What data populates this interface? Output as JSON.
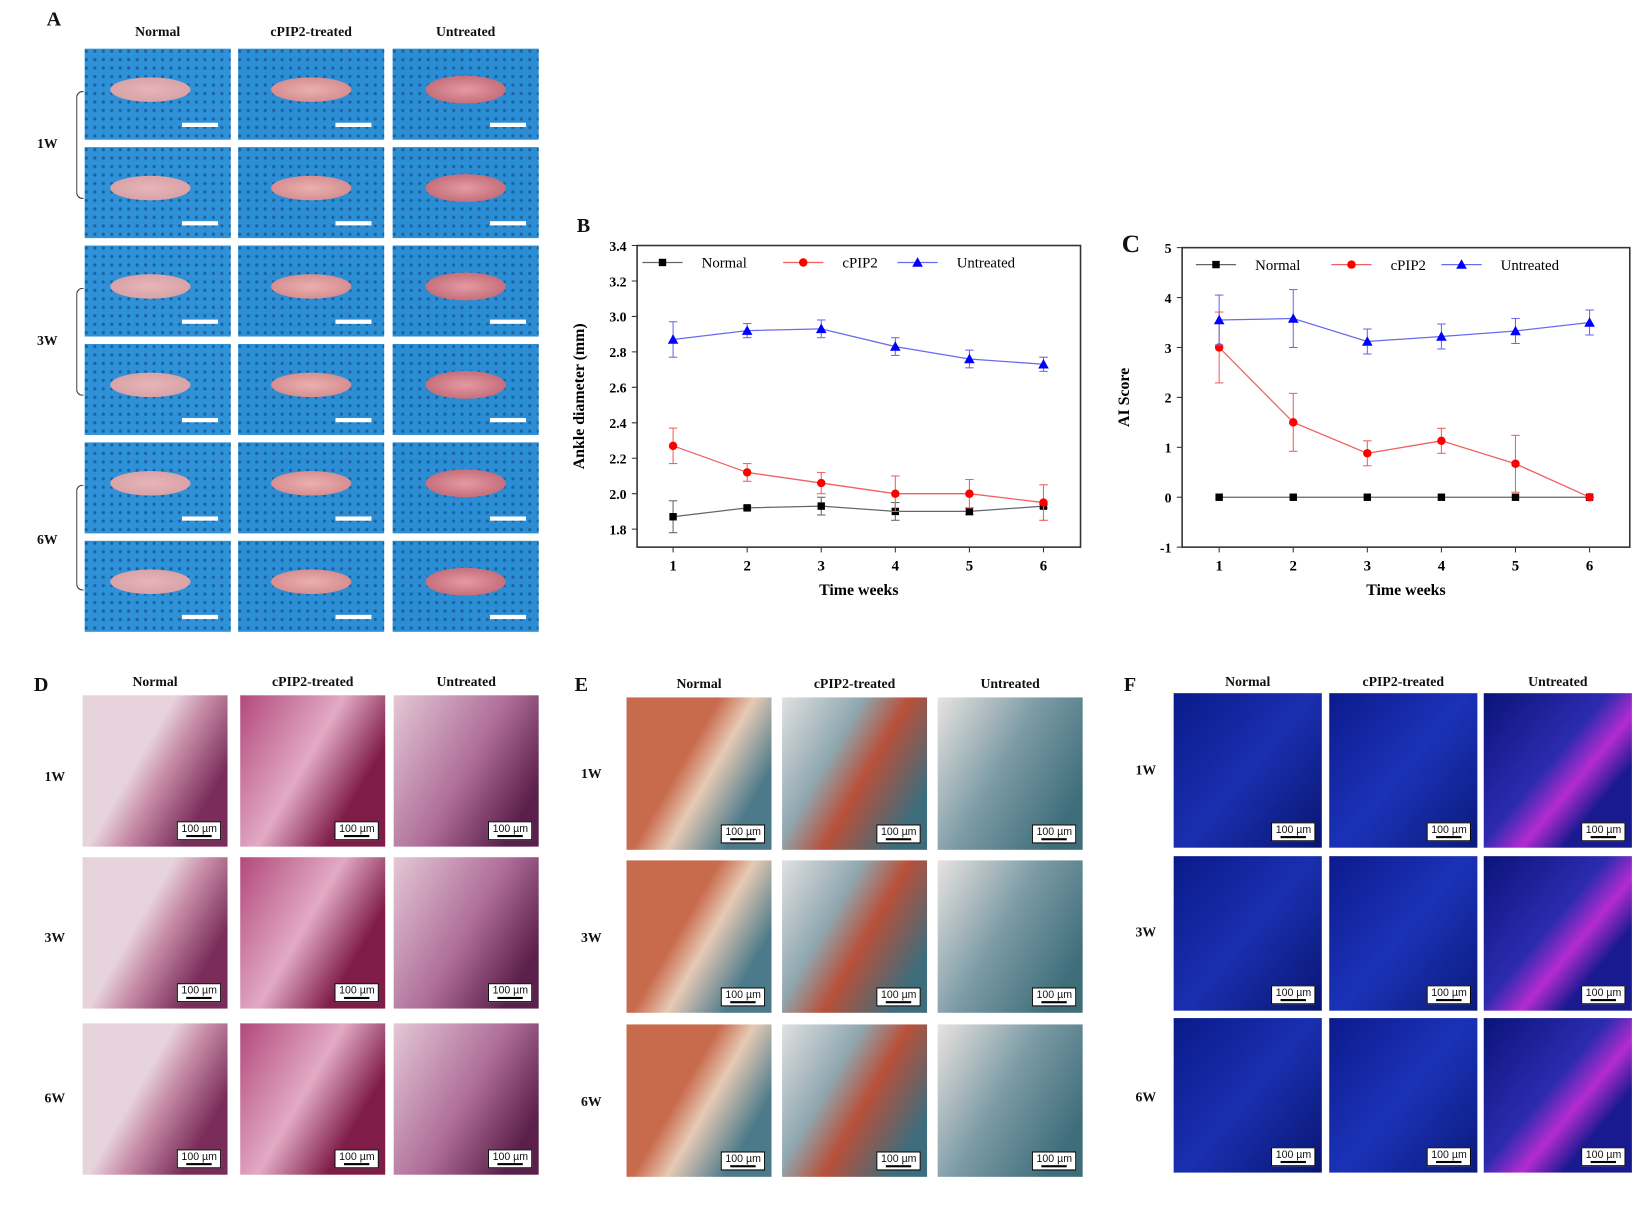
{
  "panel_labels": {
    "A": "A",
    "B": "B",
    "C": "C",
    "D": "D",
    "E": "E",
    "F": "F"
  },
  "columns": [
    "Normal",
    "cPIP2-treated",
    "Untreated"
  ],
  "rows": [
    "1W",
    "3W",
    "6W"
  ],
  "scale_bar": "100 µm",
  "colors": {
    "Normal": "#000000",
    "cPIP2": "#ff0000",
    "Untreated": "#0000ff"
  },
  "chart_data": [
    {
      "type": "line",
      "panel": "B",
      "xlabel": "Time weeks",
      "ylabel": "Ankle diameter (mm)",
      "x": [
        1,
        2,
        3,
        4,
        5,
        6
      ],
      "ylim": [
        1.7,
        3.4
      ],
      "yticks": [
        "1.8",
        "2.0",
        "2.2",
        "2.4",
        "2.6",
        "2.8",
        "3.0",
        "3.2",
        "3.4"
      ],
      "legend": "top",
      "grid": false,
      "series": [
        {
          "name": "Normal",
          "marker": "square",
          "values": [
            1.87,
            1.92,
            1.93,
            1.9,
            1.9,
            1.93
          ],
          "errors": [
            0.09,
            0.01,
            0.05,
            0.05,
            0.02,
            0.01
          ]
        },
        {
          "name": "cPIP2",
          "marker": "circle",
          "values": [
            2.27,
            2.12,
            2.06,
            2.0,
            2.0,
            1.95
          ],
          "errors": [
            0.1,
            0.05,
            0.06,
            0.1,
            0.08,
            0.1
          ]
        },
        {
          "name": "Untreated",
          "marker": "triangle",
          "values": [
            2.87,
            2.92,
            2.93,
            2.83,
            2.76,
            2.73
          ],
          "errors": [
            0.1,
            0.04,
            0.05,
            0.05,
            0.05,
            0.04
          ]
        }
      ]
    },
    {
      "type": "line",
      "panel": "C",
      "xlabel": "Time weeks",
      "ylabel": "AI Score",
      "x": [
        1,
        2,
        3,
        4,
        5,
        6
      ],
      "ylim": [
        -1,
        5
      ],
      "yticks": [
        "-1",
        "0",
        "1",
        "2",
        "3",
        "4",
        "5"
      ],
      "legend": "top",
      "grid": false,
      "series": [
        {
          "name": "Normal",
          "marker": "square",
          "values": [
            0,
            0,
            0,
            0,
            0,
            0
          ],
          "errors": [
            0,
            0,
            0,
            0,
            0,
            0
          ]
        },
        {
          "name": "cPIP2",
          "marker": "circle",
          "values": [
            3.0,
            1.5,
            0.88,
            1.13,
            0.67,
            0
          ],
          "errors": [
            0.71,
            0.58,
            0.25,
            0.25,
            0.57,
            0
          ]
        },
        {
          "name": "Untreated",
          "marker": "triangle",
          "values": [
            3.55,
            3.58,
            3.12,
            3.22,
            3.33,
            3.5
          ],
          "errors": [
            0.5,
            0.58,
            0.25,
            0.25,
            0.25,
            0.25
          ]
        }
      ]
    }
  ]
}
